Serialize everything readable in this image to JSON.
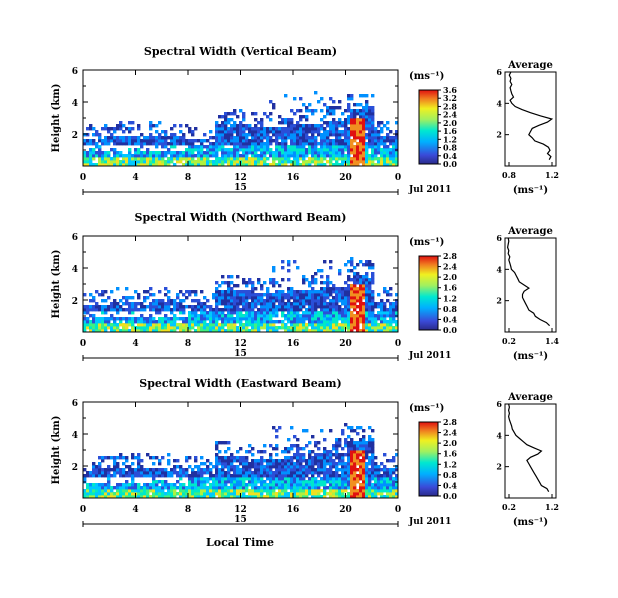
{
  "figure": {
    "common_xlabel": "Local Time",
    "date_label": "Jul 2011",
    "day_label": "15",
    "ylabel": "Height (km)",
    "units": "(ms⁻¹)",
    "profile_title": "Average",
    "profile_xlabel": "(ms⁻¹)",
    "time_ticks": [
      "0",
      "4",
      "8",
      "12",
      "16",
      "20",
      "0"
    ],
    "height_ticks": [
      "2",
      "4",
      "6"
    ]
  },
  "chart_data": [
    {
      "type": "heatmap",
      "title": "Spectral Width (Vertical Beam)",
      "xlabel": "Local Time",
      "ylabel": "Height (km)",
      "xlim": [
        0,
        24
      ],
      "ylim": [
        0,
        6
      ],
      "colorbar": {
        "label": "(ms⁻¹)",
        "ticks": [
          "0.0",
          "0.4",
          "0.8",
          "1.2",
          "1.6",
          "2.0",
          "2.4",
          "2.8",
          "3.2",
          "3.6"
        ],
        "range": [
          0,
          3.6
        ]
      },
      "colors": {
        "low": "#1a1aa0",
        "mid": "#00e0ff",
        "high": "#e01010"
      },
      "profile": {
        "title": "Average",
        "xlabel": "(ms⁻¹)",
        "xticks": [
          "0.8",
          "1.2"
        ],
        "xlim": [
          0.7,
          1.3
        ],
        "yticks": [
          "2",
          "4",
          "6"
        ],
        "height": [
          0.4,
          0.6,
          0.8,
          1.0,
          1.2,
          1.4,
          1.6,
          1.8,
          2.0,
          2.2,
          2.4,
          2.6,
          2.8,
          3.0,
          3.2,
          3.4,
          3.6,
          3.8,
          4.0,
          4.2,
          4.4,
          4.6,
          4.8,
          5.0,
          5.2,
          5.4,
          5.6,
          5.8,
          6.0
        ],
        "width": [
          1.22,
          1.24,
          1.2,
          1.23,
          1.21,
          1.15,
          1.05,
          1.02,
          0.98,
          1.0,
          1.02,
          1.1,
          1.2,
          1.25,
          1.12,
          1.0,
          0.9,
          0.82,
          0.78,
          0.76,
          0.8,
          0.78,
          0.77,
          0.76,
          0.78,
          0.76,
          0.77,
          0.75,
          0.77
        ]
      }
    },
    {
      "type": "heatmap",
      "title": "Spectral Width (Northward Beam)",
      "xlabel": "Local Time",
      "ylabel": "Height (km)",
      "xlim": [
        0,
        24
      ],
      "ylim": [
        0,
        6
      ],
      "colorbar": {
        "label": "(ms⁻¹)",
        "ticks": [
          "0.0",
          "0.4",
          "0.8",
          "1.2",
          "1.6",
          "2.0",
          "2.4",
          "2.8"
        ],
        "range": [
          0,
          2.8
        ]
      },
      "colors": {
        "low": "#1a1aa0",
        "mid": "#00e0ff",
        "high": "#e01010"
      },
      "profile": {
        "title": "Average",
        "xlabel": "(ms⁻¹)",
        "xticks": [
          "0.2",
          "1.4"
        ],
        "xlim": [
          0.0,
          1.6
        ],
        "yticks": [
          "2",
          "4",
          "6"
        ],
        "height": [
          0.4,
          0.6,
          0.8,
          1.0,
          1.2,
          1.4,
          1.6,
          1.8,
          2.0,
          2.2,
          2.4,
          2.6,
          2.8,
          3.0,
          3.2,
          3.4,
          3.6,
          3.8,
          4.0,
          4.2,
          4.4,
          4.6,
          4.8,
          5.0,
          5.2,
          5.4,
          5.6,
          5.8,
          6.0
        ],
        "width": [
          1.4,
          1.3,
          1.1,
          0.95,
          0.9,
          0.75,
          0.7,
          0.65,
          0.6,
          0.55,
          0.55,
          0.6,
          0.75,
          0.6,
          0.45,
          0.4,
          0.35,
          0.3,
          0.2,
          0.18,
          0.15,
          0.12,
          0.15,
          0.1,
          0.12,
          0.08,
          0.1,
          0.12,
          0.1
        ]
      }
    },
    {
      "type": "heatmap",
      "title": "Spectral Width (Eastward Beam)",
      "xlabel": "Local Time",
      "ylabel": "Height (km)",
      "xlim": [
        0,
        24
      ],
      "ylim": [
        0,
        6
      ],
      "colorbar": {
        "label": "(ms⁻¹)",
        "ticks": [
          "0.0",
          "0.4",
          "0.8",
          "1.2",
          "1.6",
          "2.0",
          "2.4",
          "2.8"
        ],
        "range": [
          0,
          2.8
        ]
      },
      "colors": {
        "low": "#1a1aa0",
        "mid": "#00e0ff",
        "high": "#e01010"
      },
      "profile": {
        "title": "Average",
        "xlabel": "(ms⁻¹)",
        "xticks": [
          "0.2",
          "1.2"
        ],
        "xlim": [
          0.0,
          1.4
        ],
        "yticks": [
          "2",
          "4",
          "6"
        ],
        "height": [
          0.4,
          0.6,
          0.8,
          1.0,
          1.2,
          1.4,
          1.6,
          1.8,
          2.0,
          2.2,
          2.4,
          2.6,
          2.8,
          3.0,
          3.2,
          3.4,
          3.6,
          3.8,
          4.0,
          4.2,
          4.4,
          4.6,
          4.8,
          5.0,
          5.2,
          5.4,
          5.6,
          5.8,
          6.0
        ],
        "width": [
          1.2,
          1.15,
          1.0,
          0.95,
          0.9,
          0.85,
          0.8,
          0.75,
          0.7,
          0.65,
          0.6,
          0.7,
          0.9,
          1.0,
          0.8,
          0.6,
          0.5,
          0.4,
          0.3,
          0.25,
          0.2,
          0.18,
          0.15,
          0.12,
          0.1,
          0.12,
          0.1,
          0.12,
          0.1
        ]
      }
    }
  ]
}
